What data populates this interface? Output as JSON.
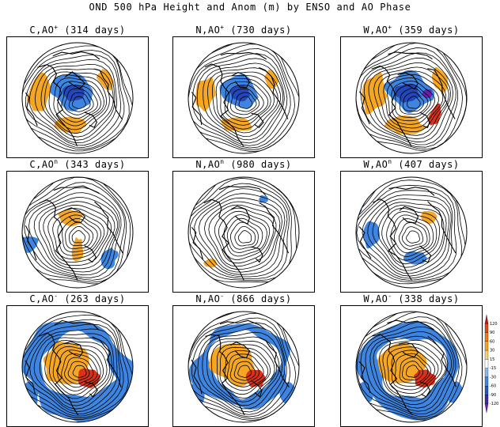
{
  "figure": {
    "title": "OND 500 hPa Height and Anom (m) by ENSO and AO Phase"
  },
  "panels": [
    {
      "id": "c-aopos",
      "row": 0,
      "col": 0,
      "enso": "C",
      "ao_sup": "+",
      "days": "(314 days)",
      "pattern": "pos",
      "strength": 1.0
    },
    {
      "id": "n-aopos",
      "row": 0,
      "col": 1,
      "enso": "N",
      "ao_sup": "+",
      "days": "(730 days)",
      "pattern": "pos",
      "strength": 0.9
    },
    {
      "id": "w-aopos",
      "row": 0,
      "col": 2,
      "enso": "W",
      "ao_sup": "+",
      "days": "(359 days)",
      "pattern": "pos",
      "strength": 1.1
    },
    {
      "id": "c-aoneu",
      "row": 1,
      "col": 0,
      "enso": "C",
      "ao_sup": "n",
      "days": "(343 days)",
      "pattern": "neu",
      "strength": 0.6
    },
    {
      "id": "n-aoneu",
      "row": 1,
      "col": 1,
      "enso": "N",
      "ao_sup": "n",
      "days": "(980 days)",
      "pattern": "neu",
      "strength": 0.3
    },
    {
      "id": "w-aoneu",
      "row": 1,
      "col": 2,
      "enso": "W",
      "ao_sup": "n",
      "days": "(407 days)",
      "pattern": "neu",
      "strength": 0.6
    },
    {
      "id": "c-aoneg",
      "row": 2,
      "col": 0,
      "enso": "C",
      "ao_sup": "-",
      "days": "(263 days)",
      "pattern": "neg",
      "strength": 1.1
    },
    {
      "id": "n-aoneg",
      "row": 2,
      "col": 1,
      "enso": "N",
      "ao_sup": "-",
      "days": "(866 days)",
      "pattern": "neg",
      "strength": 1.0
    },
    {
      "id": "w-aoneg",
      "row": 2,
      "col": 2,
      "enso": "W",
      "ao_sup": "-",
      "days": "(338 days)",
      "pattern": "neg",
      "strength": 1.0
    }
  ],
  "colorbar": {
    "labels": [
      "120",
      "90",
      "60",
      "30",
      "15",
      "-15",
      "-30",
      "-60",
      "-90",
      "-120"
    ],
    "colors": [
      "#c41010",
      "#e04a10",
      "#f07a10",
      "#f5a623",
      "#f8cf7a",
      "#ffffff",
      "#8ab8f0",
      "#3d85e0",
      "#2356c7",
      "#3a2aa8",
      "#7a1aa8"
    ]
  },
  "colors": {
    "contour": "#000000",
    "coast": "#000000",
    "positive_anom": "#f5a623",
    "strong_positive_anom": "#d9321a",
    "negative_anom": "#3d85e0",
    "strong_negative_anom": "#2346b8",
    "extreme_negative_anom": "#6a1fb0"
  }
}
